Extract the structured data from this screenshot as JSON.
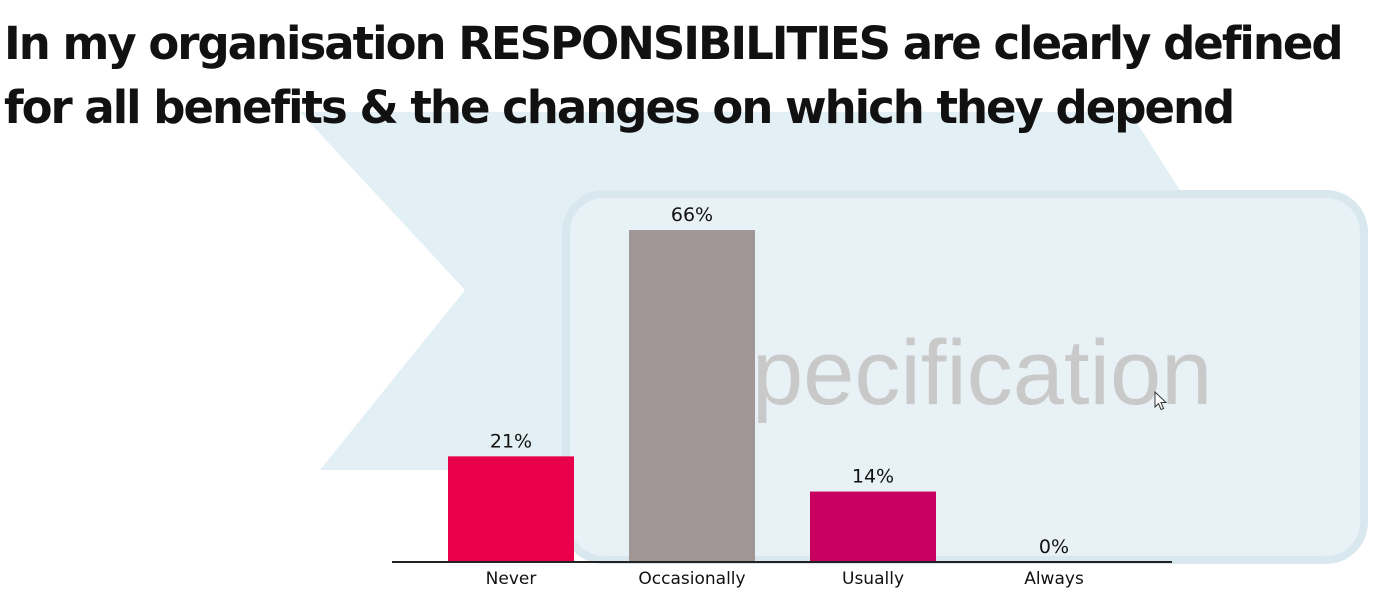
{
  "title": "In my organisation RESPONSIBILITIES are clearly defined for all benefits & the changes on which they depend",
  "background": {
    "watermark_text": "pecification",
    "shape_color": "#e1eef3"
  },
  "chart_data": {
    "type": "bar",
    "categories": [
      "Never",
      "Occasionally",
      "Usually",
      "Always"
    ],
    "values": [
      21,
      66,
      14,
      0
    ],
    "value_labels": [
      "21%",
      "66%",
      "14%",
      "0%"
    ],
    "colors": [
      "#e8004a",
      "#a09696",
      "#c8005f",
      "#c8005f"
    ],
    "ylim": [
      0,
      66
    ],
    "xlabel": "",
    "ylabel": "",
    "grid": false
  }
}
